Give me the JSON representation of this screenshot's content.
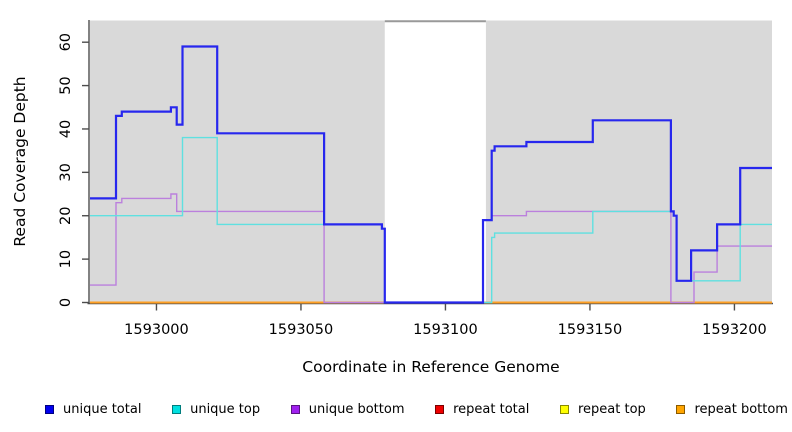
{
  "chart_data": {
    "type": "step-line",
    "title": "",
    "xlabel": "Coordinate in Reference Genome",
    "ylabel": "Read Coverage Depth",
    "xlim": [
      1592977,
      1593213
    ],
    "ylim": [
      0,
      65
    ],
    "x_ticks": [
      1593000,
      1593050,
      1593100,
      1593150,
      1593200
    ],
    "y_ticks": [
      0,
      10,
      20,
      30,
      40,
      50,
      60
    ],
    "grid": false,
    "legend_position": "bottom",
    "plot_background": "#d9d9d9",
    "figure_background": "#ffffff",
    "axis_color": "#4d4d4d",
    "covered_regions": [
      [
        1592977,
        1593079
      ],
      [
        1593114,
        1593213
      ]
    ],
    "gap_region": {
      "from": 1593079,
      "to": 1593114,
      "fill": "#ffffff",
      "border_color": "#999999"
    },
    "series": [
      {
        "name": "unique total",
        "color": "#0000ee",
        "line_color": "#2727ee",
        "swatch_border": "#000080",
        "line_width": 2.2,
        "steps": [
          [
            1592977,
            24
          ],
          [
            1592986,
            43
          ],
          [
            1592988,
            44
          ],
          [
            1593005,
            45
          ],
          [
            1593007,
            41
          ],
          [
            1593009,
            59
          ],
          [
            1593021,
            39
          ],
          [
            1593058,
            18
          ],
          [
            1593078,
            17
          ],
          [
            1593079,
            0
          ],
          [
            1593113,
            19
          ],
          [
            1593116,
            35
          ],
          [
            1593117,
            36
          ],
          [
            1593128,
            37
          ],
          [
            1593151,
            42
          ],
          [
            1593178,
            21
          ],
          [
            1593179,
            20
          ],
          [
            1593180,
            5
          ],
          [
            1593185,
            12
          ],
          [
            1593194,
            18
          ],
          [
            1593202,
            31
          ]
        ]
      },
      {
        "name": "unique top",
        "color": "#00e0e0",
        "line_color": "#5fe0e0",
        "swatch_border": "#007d7d",
        "line_width": 1.4,
        "steps": [
          [
            1592977,
            20
          ],
          [
            1593009,
            38
          ],
          [
            1593021,
            18
          ],
          [
            1593078,
            17
          ],
          [
            1593079,
            0
          ],
          [
            1593116,
            15
          ],
          [
            1593117,
            16
          ],
          [
            1593151,
            21
          ],
          [
            1593179,
            20
          ],
          [
            1593180,
            5
          ],
          [
            1593202,
            18
          ]
        ]
      },
      {
        "name": "unique bottom",
        "color": "#a020f0",
        "line_color": "#bb80dd",
        "swatch_border": "#5a1482",
        "line_width": 1.4,
        "steps": [
          [
            1592977,
            4
          ],
          [
            1592986,
            23
          ],
          [
            1592988,
            24
          ],
          [
            1593005,
            25
          ],
          [
            1593007,
            21
          ],
          [
            1593058,
            0
          ],
          [
            1593113,
            19
          ],
          [
            1593116,
            20
          ],
          [
            1593128,
            21
          ],
          [
            1593178,
            0
          ],
          [
            1593186,
            7
          ],
          [
            1593194,
            13
          ]
        ]
      },
      {
        "name": "repeat total",
        "color": "#ee0000",
        "line_color": "#d03030",
        "swatch_border": "#7a0000",
        "line_width": 1.4,
        "steps": [
          [
            1592977,
            0
          ]
        ]
      },
      {
        "name": "repeat top",
        "color": "#ffff00",
        "line_color": "#f0f040",
        "swatch_border": "#8a8a00",
        "line_width": 1.4,
        "steps": [
          [
            1592977,
            0
          ]
        ]
      },
      {
        "name": "repeat bottom",
        "color": "#ffa500",
        "line_color": "#ffa024",
        "swatch_border": "#8a5a00",
        "line_width": 2,
        "steps": [
          [
            1592977,
            0
          ]
        ]
      }
    ]
  }
}
